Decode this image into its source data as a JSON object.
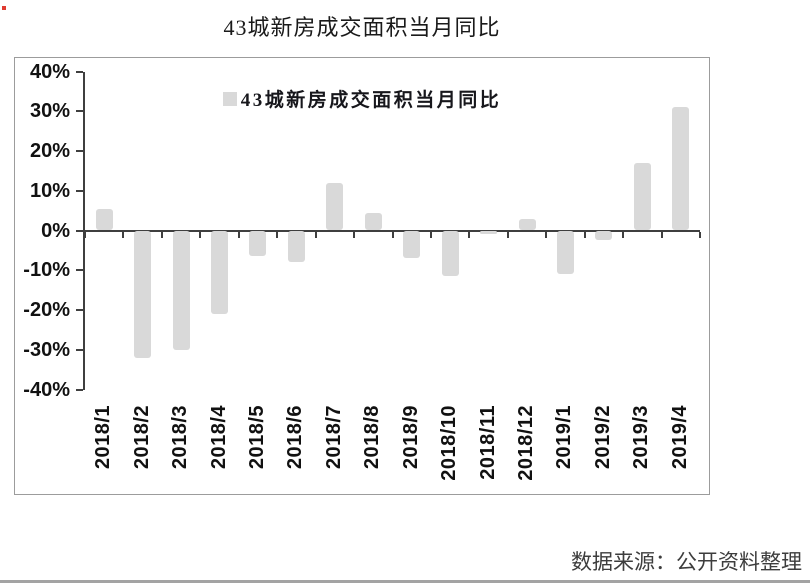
{
  "page": {
    "title": "43城新房成交面积当月同比",
    "source_note": "数据来源：公开资料整理"
  },
  "chart_data": {
    "type": "bar",
    "title": "43城新房成交面积当月同比",
    "legend": "43城新房成交面积当月同比",
    "legend_position": "top-center",
    "categories": [
      "2018/1",
      "2018/2",
      "2018/3",
      "2018/4",
      "2018/5",
      "2018/6",
      "2018/7",
      "2018/8",
      "2018/9",
      "2018/10",
      "2018/11",
      "2018/12",
      "2019/1",
      "2019/2",
      "2019/3",
      "2019/4"
    ],
    "values": [
      5.5,
      -32,
      -30,
      -21,
      -6.5,
      -8,
      12,
      4.5,
      -7,
      -11.5,
      -1,
      3,
      -11,
      -2.5,
      17,
      31
    ],
    "y_ticks": [
      {
        "value": 40,
        "label": "40%"
      },
      {
        "value": 30,
        "label": "30%"
      },
      {
        "value": 20,
        "label": "20%"
      },
      {
        "value": 10,
        "label": "10%"
      },
      {
        "value": 0,
        "label": "0%"
      },
      {
        "value": -10,
        "label": "-10%"
      },
      {
        "value": -20,
        "label": "-20%"
      },
      {
        "value": -30,
        "label": "-30%"
      },
      {
        "value": -40,
        "label": "-40%"
      }
    ],
    "ylim": [
      -40,
      40
    ],
    "xlabel": "",
    "ylabel": "",
    "grid": false,
    "bar_color": "#d9d9d9",
    "axis_color": "#3f3f3f"
  }
}
